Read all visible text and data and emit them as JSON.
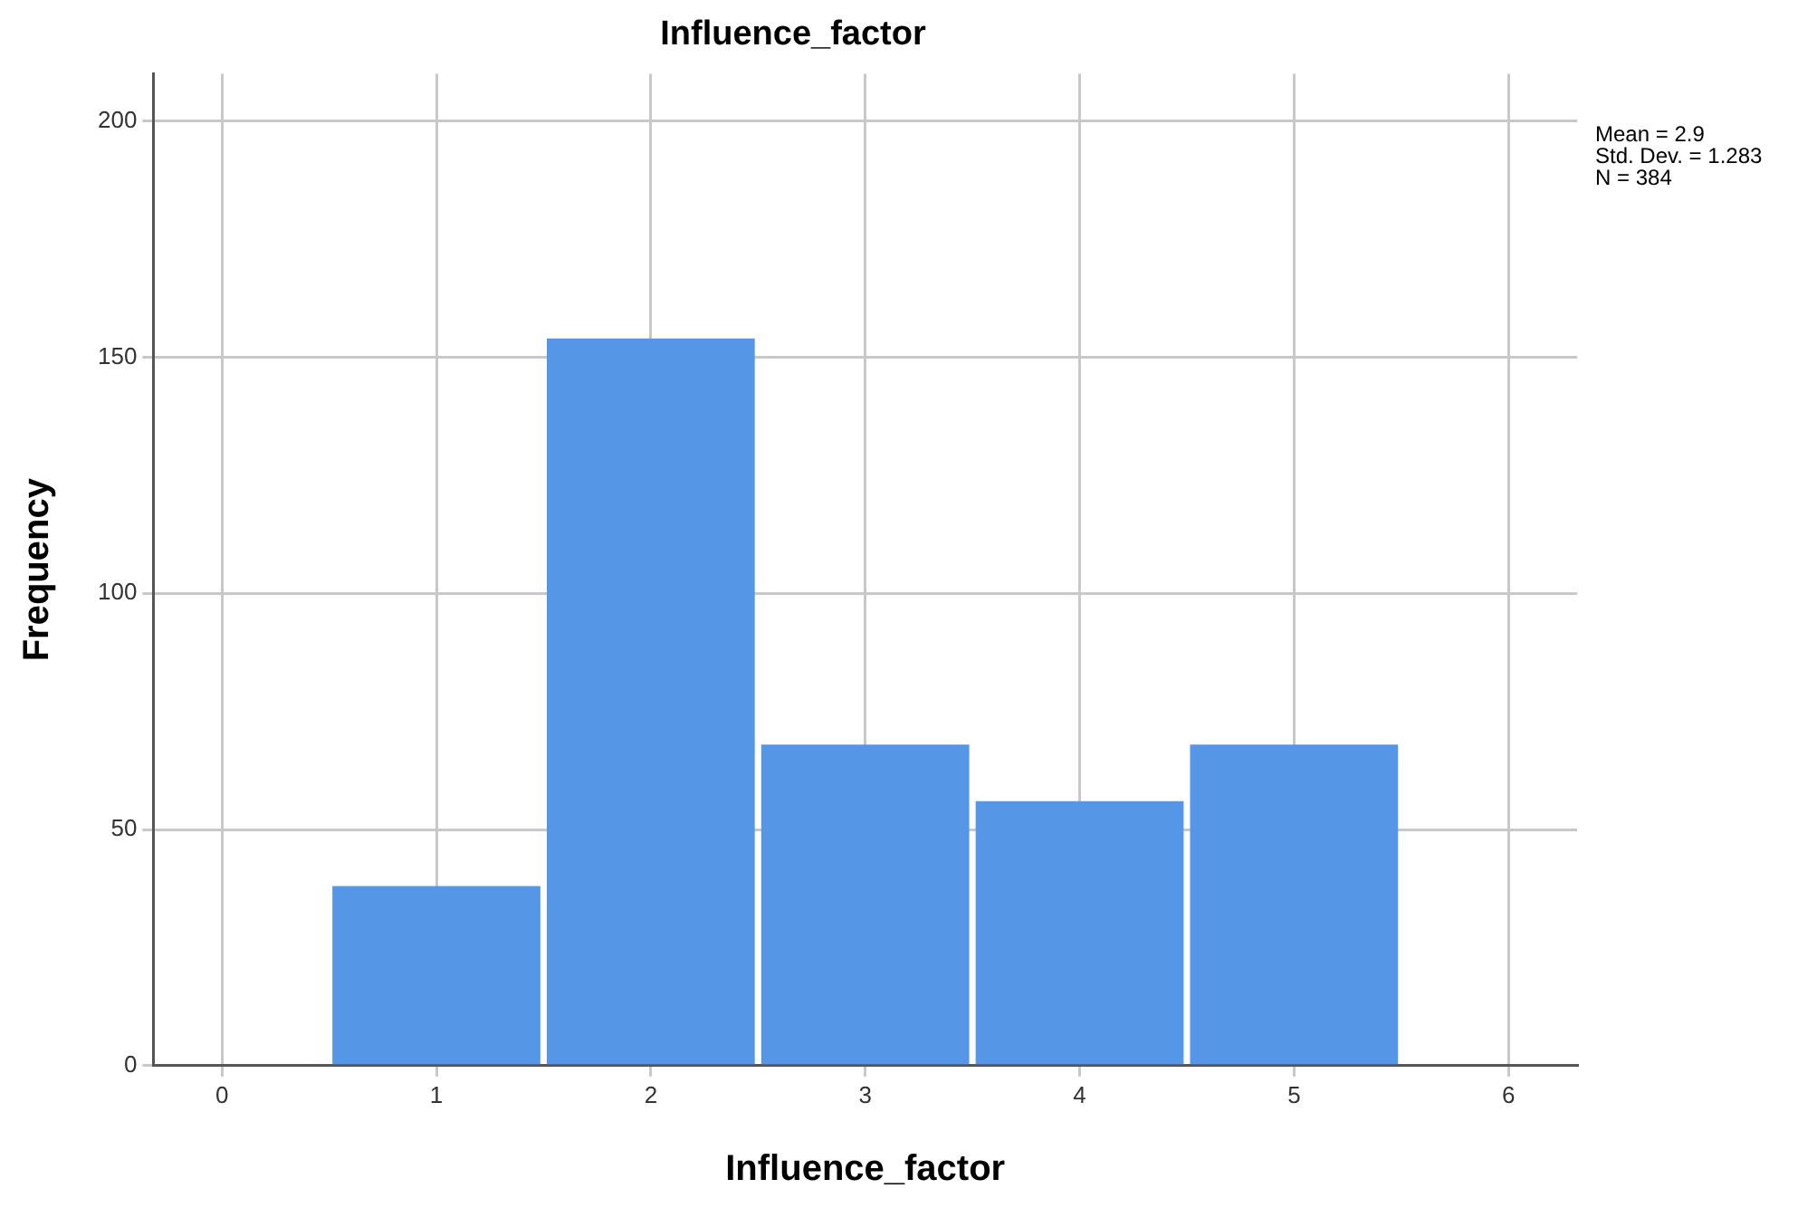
{
  "chart_data": {
    "type": "histogram",
    "title": "Influence_factor",
    "xlabel": "Influence_factor",
    "ylabel": "Frequency",
    "bins": [
      0.5,
      1.5,
      2.5,
      3.5,
      4.5,
      5.5
    ],
    "values": [
      38,
      154,
      68,
      56,
      68
    ],
    "color": "#5596e6",
    "xlim": [
      -0.32,
      6.32
    ],
    "xticks": [
      0,
      1,
      2,
      3,
      4,
      5,
      6
    ],
    "ylim": [
      0,
      210
    ],
    "yticks": [
      0,
      50,
      100,
      150,
      200
    ],
    "grid": true,
    "legend": false,
    "annotations": [
      "Mean = 2.9\nStd. Dev. = 1.283\nN = 384"
    ]
  }
}
